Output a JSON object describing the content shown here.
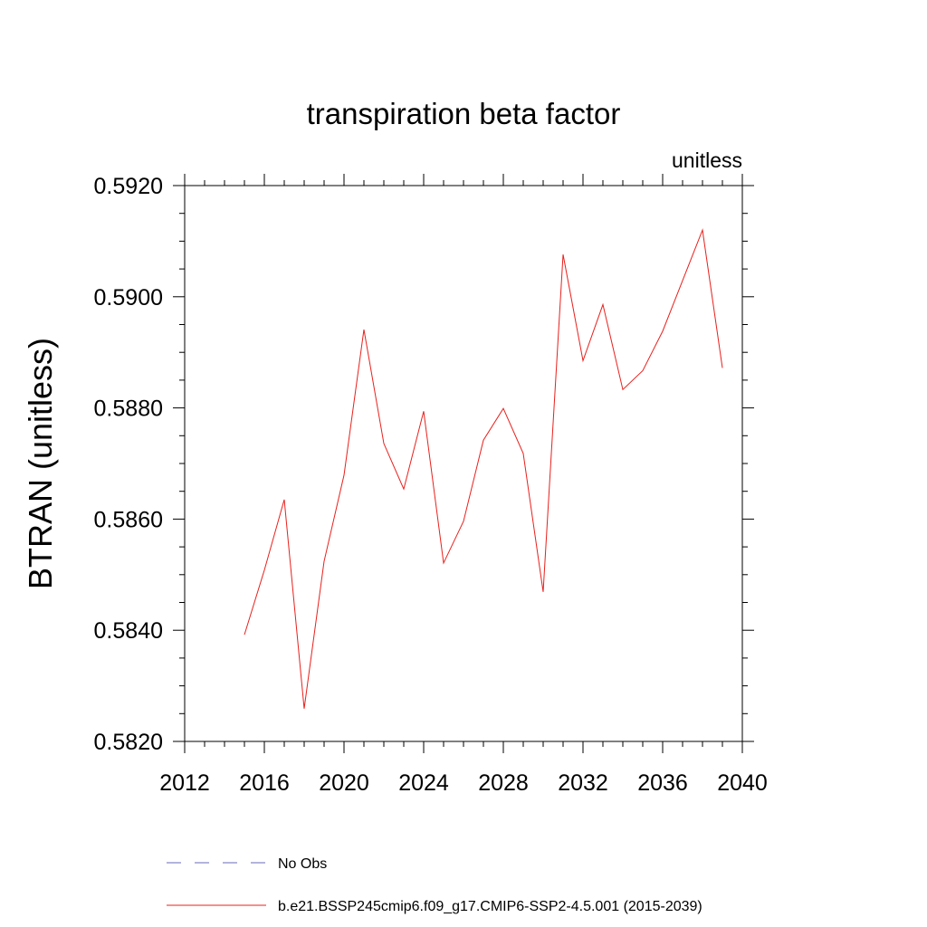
{
  "chart_data": {
    "type": "line",
    "title": "transpiration beta factor",
    "units_label": "unitless",
    "ylabel": "BTRAN  (unitless)",
    "xlabel": "",
    "xlim": [
      2012,
      2040
    ],
    "ylim": [
      0.582,
      0.592
    ],
    "x_ticks": [
      2012,
      2016,
      2020,
      2024,
      2028,
      2032,
      2036,
      2040
    ],
    "x_tick_labels": [
      "2012",
      "2016",
      "2020",
      "2024",
      "2028",
      "2032",
      "2036",
      "2040"
    ],
    "y_ticks": [
      0.582,
      0.584,
      0.586,
      0.588,
      0.59,
      0.592
    ],
    "y_tick_labels": [
      "0.5820",
      "0.5840",
      "0.5860",
      "0.5880",
      "0.5900",
      "0.5920"
    ],
    "x_minor_step": 1,
    "y_minor_step": 0.0005,
    "series": [
      {
        "name": "b.e21.BSSP245cmip6.f09_g17.CMIP6-SSP2-4.5.001 (2015-2039)",
        "color": "#e8201c",
        "style": "solid",
        "x": [
          2015,
          2016,
          2017,
          2018,
          2019,
          2020,
          2021,
          2022,
          2023,
          2024,
          2025,
          2026,
          2027,
          2028,
          2029,
          2030,
          2031,
          2032,
          2033,
          2034,
          2035,
          2036,
          2037,
          2038,
          2039
        ],
        "values": [
          0.58392,
          0.58508,
          0.58635,
          0.58259,
          0.58524,
          0.58679,
          0.58941,
          0.58736,
          0.58654,
          0.58794,
          0.58521,
          0.58596,
          0.58742,
          0.58799,
          0.58718,
          0.58469,
          0.59076,
          0.58885,
          0.58986,
          0.58833,
          0.58867,
          0.58938,
          0.59029,
          0.5912,
          0.58872
        ]
      }
    ]
  },
  "legend": {
    "items": [
      {
        "label": "No Obs",
        "color": "#6a6ab8",
        "style": "dashed"
      },
      {
        "label": "b.e21.BSSP245cmip6.f09_g17.CMIP6-SSP2-4.5.001 (2015-2039)",
        "color": "#e8201c",
        "style": "solid"
      }
    ]
  }
}
